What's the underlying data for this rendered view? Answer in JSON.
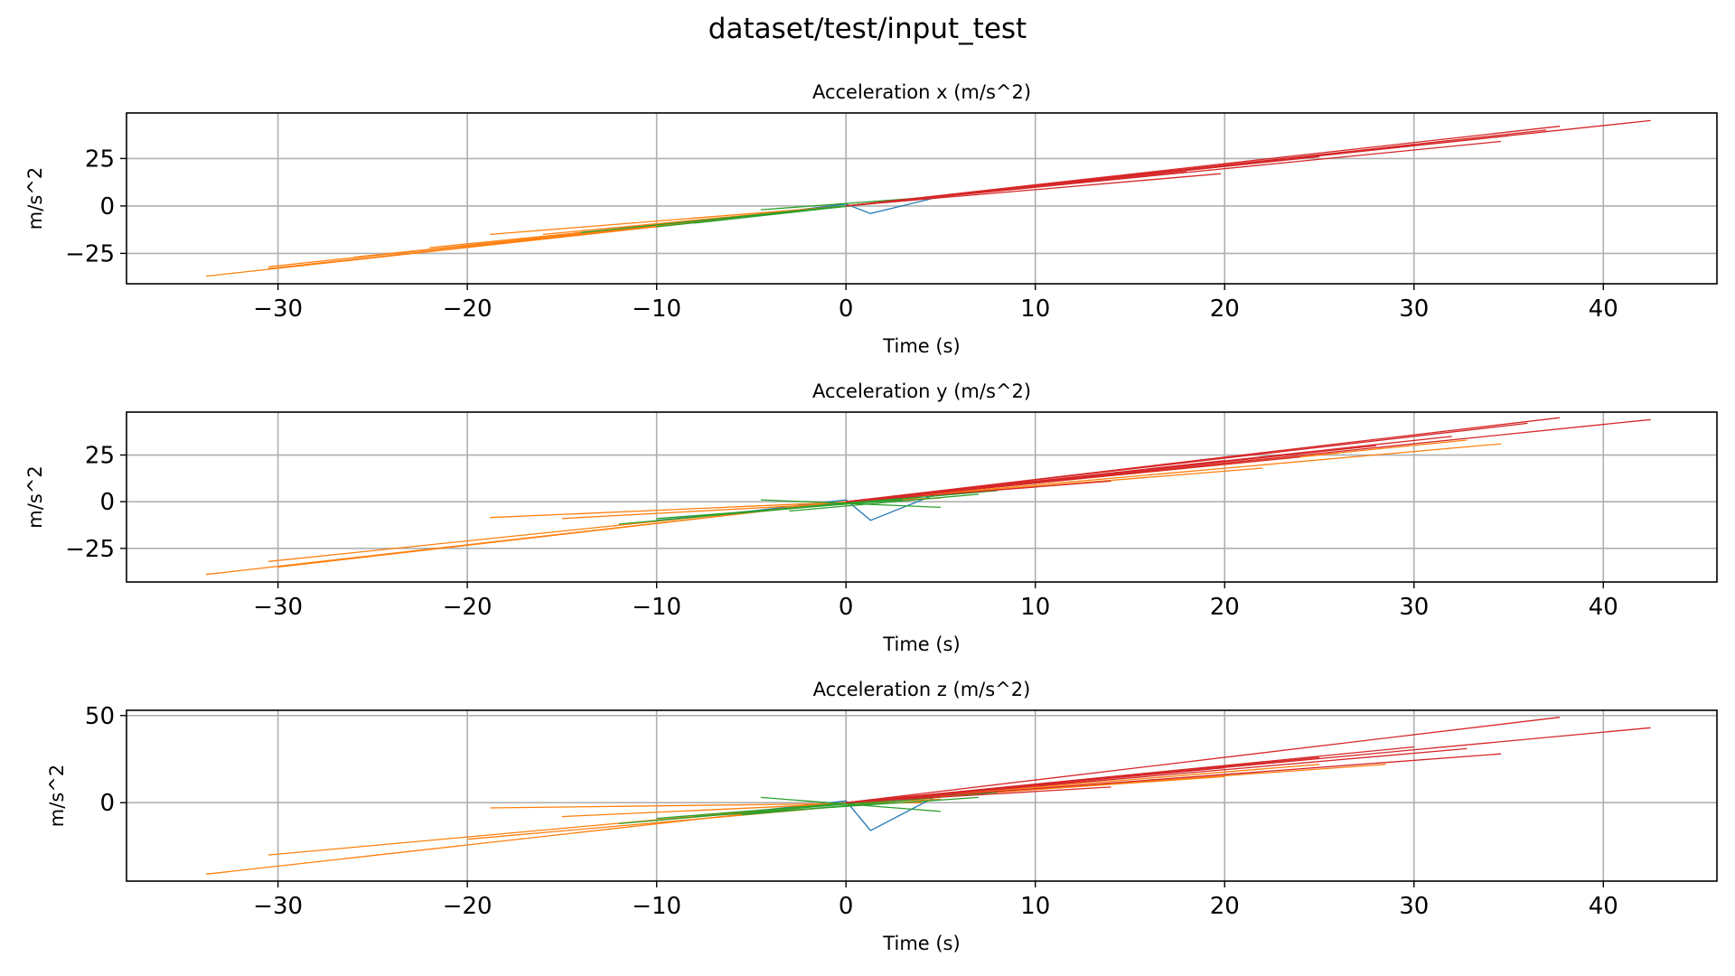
{
  "figure": {
    "title": "dataset/test/input_test"
  },
  "colors": {
    "blue": "#1f77b4",
    "orange": "#ff7f0e",
    "green": "#2ca02c",
    "red": "#d62728",
    "grid": "#b0b0b0",
    "axis": "#000000"
  },
  "chart_data": [
    {
      "type": "line",
      "title": "Acceleration x (m/s^2)",
      "xlabel": "Time (s)",
      "ylabel": "m/s^2",
      "xlim": [
        -38,
        46
      ],
      "ylim": [
        -41,
        49
      ],
      "xticks": [
        -30,
        -20,
        -10,
        0,
        10,
        20,
        30,
        40
      ],
      "xtick_labels": [
        "−30",
        "−20",
        "−10",
        "0",
        "10",
        "20",
        "30",
        "40"
      ],
      "yticks": [
        -25,
        0,
        25
      ],
      "ytick_labels": [
        "−25",
        "0",
        "25"
      ],
      "grid": true,
      "series": [
        {
          "color": "blue",
          "x": [
            -10,
            -5,
            0,
            1.3,
            5,
            10
          ],
          "y": [
            -10,
            -5,
            1,
            -4,
            5,
            10
          ]
        },
        {
          "color": "orange",
          "x": [
            -33.8,
            0
          ],
          "y": [
            -37,
            0
          ]
        },
        {
          "color": "orange",
          "x": [
            -30.5,
            0
          ],
          "y": [
            -32,
            0
          ]
        },
        {
          "color": "orange",
          "x": [
            -30.5,
            0
          ],
          "y": [
            -33,
            0
          ]
        },
        {
          "color": "orange",
          "x": [
            -18.8,
            0
          ],
          "y": [
            -15,
            0
          ]
        },
        {
          "color": "orange",
          "x": [
            -16,
            0
          ],
          "y": [
            -15,
            0
          ]
        },
        {
          "color": "orange",
          "x": [
            -22,
            0
          ],
          "y": [
            -22,
            0
          ]
        },
        {
          "color": "orange",
          "x": [
            -26,
            0
          ],
          "y": [
            -27,
            0
          ]
        },
        {
          "color": "green",
          "x": [
            -12,
            2
          ],
          "y": [
            -12,
            2
          ]
        },
        {
          "color": "green",
          "x": [
            -10,
            3
          ],
          "y": [
            -11,
            3
          ]
        },
        {
          "color": "green",
          "x": [
            -8,
            2
          ],
          "y": [
            -9,
            2
          ]
        },
        {
          "color": "green",
          "x": [
            -5,
            4
          ],
          "y": [
            -5,
            4
          ]
        },
        {
          "color": "green",
          "x": [
            -4.5,
            5
          ],
          "y": [
            -2,
            5
          ]
        },
        {
          "color": "green",
          "x": [
            -14,
            1
          ],
          "y": [
            -14,
            1
          ]
        },
        {
          "color": "red",
          "x": [
            0,
            42.5
          ],
          "y": [
            0,
            45
          ]
        },
        {
          "color": "red",
          "x": [
            0,
            37.7
          ],
          "y": [
            0,
            42
          ]
        },
        {
          "color": "red",
          "x": [
            0,
            37
          ],
          "y": [
            0,
            40
          ]
        },
        {
          "color": "red",
          "x": [
            0,
            35
          ],
          "y": [
            0,
            37
          ]
        },
        {
          "color": "red",
          "x": [
            0,
            34.6
          ],
          "y": [
            0,
            34
          ]
        },
        {
          "color": "red",
          "x": [
            0,
            30
          ],
          "y": [
            0,
            32
          ]
        },
        {
          "color": "red",
          "x": [
            0,
            25
          ],
          "y": [
            0,
            26
          ]
        },
        {
          "color": "red",
          "x": [
            0,
            23
          ],
          "y": [
            0,
            24
          ]
        },
        {
          "color": "red",
          "x": [
            0,
            19.8
          ],
          "y": [
            0,
            17
          ]
        },
        {
          "color": "red",
          "x": [
            0,
            18
          ],
          "y": [
            0,
            18
          ]
        },
        {
          "color": "red",
          "x": [
            0,
            14
          ],
          "y": [
            0,
            14
          ]
        }
      ]
    },
    {
      "type": "line",
      "title": "Acceleration y (m/s^2)",
      "xlabel": "Time (s)",
      "ylabel": "m/s^2",
      "xlim": [
        -38,
        46
      ],
      "ylim": [
        -43,
        48
      ],
      "xticks": [
        -30,
        -20,
        -10,
        0,
        10,
        20,
        30,
        40
      ],
      "xtick_labels": [
        "−30",
        "−20",
        "−10",
        "0",
        "10",
        "20",
        "30",
        "40"
      ],
      "yticks": [
        -25,
        0,
        25
      ],
      "ytick_labels": [
        "−25",
        "0",
        "25"
      ],
      "grid": true,
      "series": [
        {
          "color": "blue",
          "x": [
            -10,
            -5,
            0,
            1.3,
            5,
            10
          ],
          "y": [
            -10,
            -5,
            1,
            -10,
            5,
            10
          ]
        },
        {
          "color": "orange",
          "x": [
            -33.8,
            0
          ],
          "y": [
            -39,
            0
          ]
        },
        {
          "color": "orange",
          "x": [
            -30.5,
            0
          ],
          "y": [
            -32,
            0
          ]
        },
        {
          "color": "orange",
          "x": [
            -30,
            0
          ],
          "y": [
            -35,
            0
          ]
        },
        {
          "color": "orange",
          "x": [
            -18.8,
            5
          ],
          "y": [
            -8.5,
            2
          ]
        },
        {
          "color": "orange",
          "x": [
            -15,
            5
          ],
          "y": [
            -9,
            2
          ]
        },
        {
          "color": "orange",
          "x": [
            0,
            34.6
          ],
          "y": [
            0,
            31
          ]
        },
        {
          "color": "orange",
          "x": [
            0,
            32.8
          ],
          "y": [
            0,
            33
          ]
        },
        {
          "color": "orange",
          "x": [
            0,
            26
          ],
          "y": [
            0,
            26
          ]
        },
        {
          "color": "orange",
          "x": [
            0,
            22
          ],
          "y": [
            0,
            18
          ]
        },
        {
          "color": "green",
          "x": [
            -4.5,
            5
          ],
          "y": [
            1,
            -3
          ]
        },
        {
          "color": "green",
          "x": [
            -12,
            3
          ],
          "y": [
            -12,
            2
          ]
        },
        {
          "color": "green",
          "x": [
            -10,
            3
          ],
          "y": [
            -9,
            1
          ]
        },
        {
          "color": "green",
          "x": [
            -8,
            4
          ],
          "y": [
            -8,
            3
          ]
        },
        {
          "color": "green",
          "x": [
            -5.5,
            8
          ],
          "y": [
            -6,
            6
          ]
        },
        {
          "color": "green",
          "x": [
            -3,
            7
          ],
          "y": [
            -5,
            4
          ]
        },
        {
          "color": "red",
          "x": [
            0,
            42.5
          ],
          "y": [
            0,
            44
          ]
        },
        {
          "color": "red",
          "x": [
            0,
            37.7
          ],
          "y": [
            0,
            45
          ]
        },
        {
          "color": "red",
          "x": [
            0,
            36
          ],
          "y": [
            0,
            42
          ]
        },
        {
          "color": "red",
          "x": [
            0,
            32
          ],
          "y": [
            0,
            35
          ]
        },
        {
          "color": "red",
          "x": [
            0,
            28
          ],
          "y": [
            0,
            30
          ]
        },
        {
          "color": "red",
          "x": [
            0,
            24
          ],
          "y": [
            0,
            24
          ]
        },
        {
          "color": "red",
          "x": [
            0,
            20
          ],
          "y": [
            0,
            22
          ]
        },
        {
          "color": "red",
          "x": [
            0,
            14
          ],
          "y": [
            0,
            11
          ]
        },
        {
          "color": "red",
          "x": [
            0,
            12
          ],
          "y": [
            0,
            12
          ]
        },
        {
          "color": "red",
          "x": [
            0,
            8
          ],
          "y": [
            0,
            8
          ]
        }
      ]
    },
    {
      "type": "line",
      "title": "Acceleration z (m/s^2)",
      "xlabel": "Time (s)",
      "ylabel": "m/s^2",
      "xlim": [
        -38,
        46
      ],
      "ylim": [
        -45,
        53
      ],
      "xticks": [
        -30,
        -20,
        -10,
        0,
        10,
        20,
        30,
        40
      ],
      "xtick_labels": [
        "−30",
        "−20",
        "−10",
        "0",
        "10",
        "20",
        "30",
        "40"
      ],
      "yticks": [
        0,
        50
      ],
      "ytick_labels": [
        "0",
        "50"
      ],
      "grid": true,
      "series": [
        {
          "color": "blue",
          "x": [
            -10,
            -5,
            0,
            1.3,
            5,
            10
          ],
          "y": [
            -10,
            -5,
            1,
            -16,
            5,
            10
          ]
        },
        {
          "color": "orange",
          "x": [
            -33.8,
            0
          ],
          "y": [
            -41,
            0
          ]
        },
        {
          "color": "orange",
          "x": [
            -30.5,
            0
          ],
          "y": [
            -30,
            0
          ]
        },
        {
          "color": "orange",
          "x": [
            -18.8,
            4
          ],
          "y": [
            -3,
            0
          ]
        },
        {
          "color": "orange",
          "x": [
            -15,
            5
          ],
          "y": [
            -8,
            2
          ]
        },
        {
          "color": "orange",
          "x": [
            -20,
            2
          ],
          "y": [
            -21,
            0
          ]
        },
        {
          "color": "orange",
          "x": [
            0,
            28.5
          ],
          "y": [
            0,
            22
          ]
        },
        {
          "color": "orange",
          "x": [
            0,
            25
          ],
          "y": [
            0,
            22
          ]
        },
        {
          "color": "orange",
          "x": [
            0,
            20
          ],
          "y": [
            0,
            15
          ]
        },
        {
          "color": "green",
          "x": [
            -4.5,
            5
          ],
          "y": [
            3,
            -5
          ]
        },
        {
          "color": "green",
          "x": [
            -12,
            3
          ],
          "y": [
            -12,
            2
          ]
        },
        {
          "color": "green",
          "x": [
            -10,
            5
          ],
          "y": [
            -9,
            4
          ]
        },
        {
          "color": "green",
          "x": [
            -8,
            7
          ],
          "y": [
            -8,
            3
          ]
        },
        {
          "color": "green",
          "x": [
            -5.5,
            8
          ],
          "y": [
            -7,
            6
          ]
        },
        {
          "color": "green",
          "x": [
            -3,
            6
          ],
          "y": [
            -3,
            5
          ]
        },
        {
          "color": "red",
          "x": [
            0,
            42.5
          ],
          "y": [
            0,
            43
          ]
        },
        {
          "color": "red",
          "x": [
            0,
            37.7
          ],
          "y": [
            0,
            49
          ]
        },
        {
          "color": "red",
          "x": [
            0,
            32.8
          ],
          "y": [
            0,
            31
          ]
        },
        {
          "color": "red",
          "x": [
            0,
            34.6
          ],
          "y": [
            0,
            28
          ]
        },
        {
          "color": "red",
          "x": [
            0,
            30
          ],
          "y": [
            0,
            32
          ]
        },
        {
          "color": "red",
          "x": [
            0,
            25
          ],
          "y": [
            0,
            26
          ]
        },
        {
          "color": "red",
          "x": [
            0,
            20
          ],
          "y": [
            0,
            20
          ]
        },
        {
          "color": "red",
          "x": [
            0,
            14
          ],
          "y": [
            0,
            9
          ]
        },
        {
          "color": "red",
          "x": [
            0,
            12
          ],
          "y": [
            0,
            12
          ]
        },
        {
          "color": "red",
          "x": [
            0,
            8
          ],
          "y": [
            0,
            8
          ]
        }
      ]
    }
  ]
}
